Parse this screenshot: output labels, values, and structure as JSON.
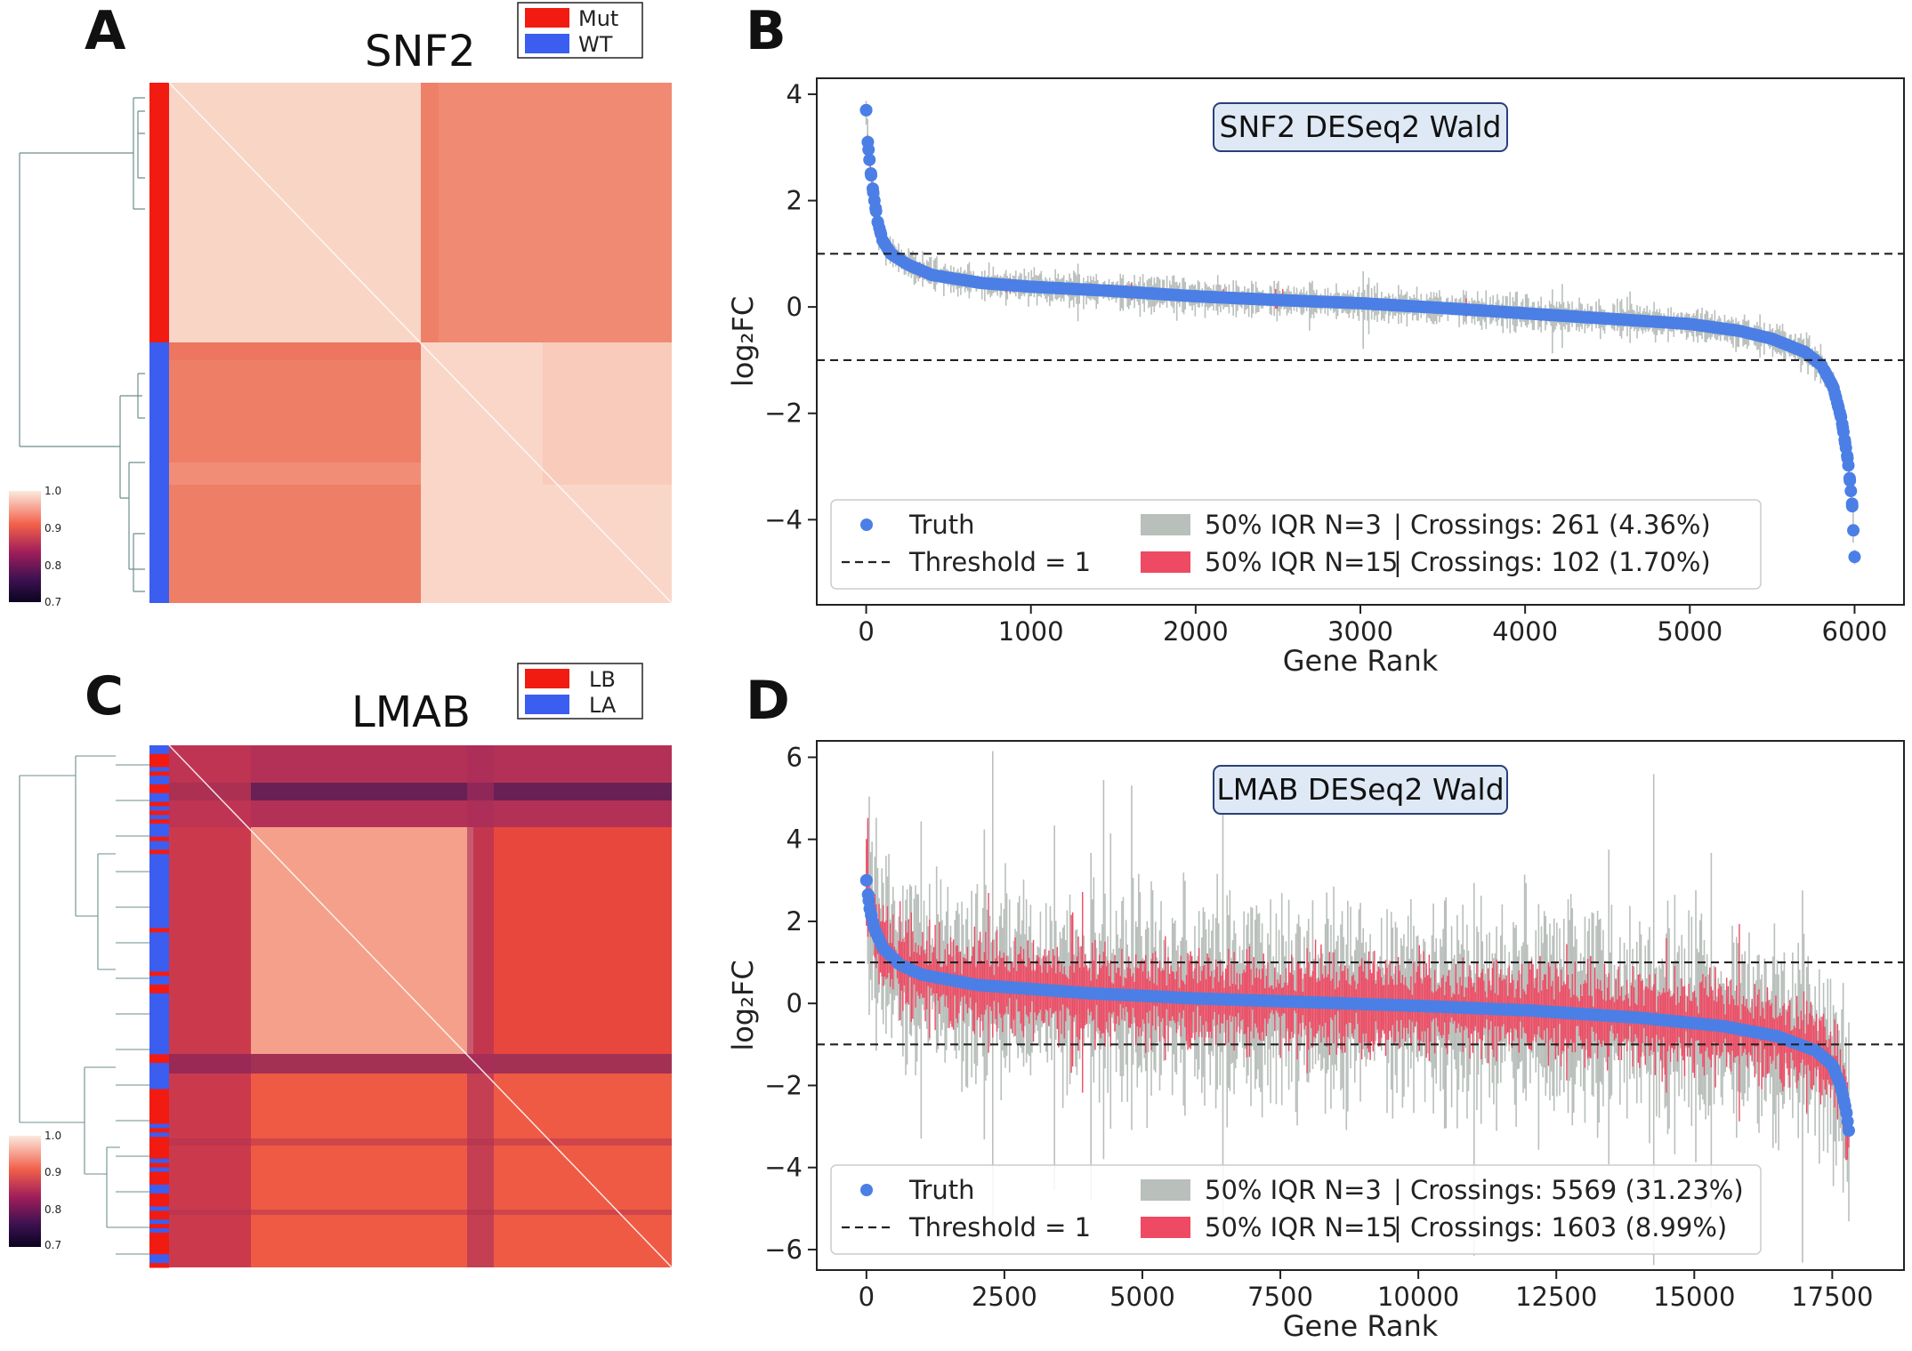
{
  "panels": {
    "A": {
      "letter": "A",
      "title": "SNF2",
      "legend": [
        "Mut",
        "WT"
      ]
    },
    "B": {
      "letter": "B"
    },
    "C": {
      "letter": "C",
      "title": "LMAB",
      "legend": [
        "LB",
        "LA"
      ]
    },
    "D": {
      "letter": "D"
    }
  },
  "colorbar": {
    "ticks": [
      "1.0",
      "0.9",
      "0.8",
      "0.7"
    ]
  },
  "colors": {
    "mut": "#f21b11",
    "wt": "#3b5ef0",
    "truth": "#4b7fe6",
    "iqr_n3": "#b9bfbb",
    "iqr_n15": "#ee4a63",
    "threshold": "#222222"
  },
  "chart_data": [
    {
      "type": "heatmap",
      "title": "SNF2",
      "groups": [
        "Mut",
        "WT"
      ],
      "group_fraction_mut": 0.5,
      "colorbar_range": [
        0.7,
        1.0
      ]
    },
    {
      "type": "scatter",
      "title": "SNF2 DESeq2 Wald",
      "xlabel": "Gene Rank",
      "ylabel": "log₂FC",
      "xlim": [
        -300,
        6300
      ],
      "ylim": [
        -5.6,
        4.3
      ],
      "xticks": [
        0,
        1000,
        2000,
        3000,
        4000,
        5000,
        6000
      ],
      "xtick_labels": [
        "0",
        "1000",
        "2000",
        "3000",
        "4000",
        "5000",
        "6000"
      ],
      "yticks": [
        4,
        2,
        0,
        -2,
        -4
      ],
      "ytick_labels": [
        "4",
        "2",
        "0",
        "−2",
        "−4"
      ],
      "n_genes": 6000,
      "threshold": 1,
      "truth_curve": [
        [
          0,
          3.7
        ],
        [
          10,
          3.1
        ],
        [
          25,
          2.6
        ],
        [
          45,
          2.1
        ],
        [
          70,
          1.6
        ],
        [
          100,
          1.25
        ],
        [
          150,
          1.0
        ],
        [
          250,
          0.8
        ],
        [
          400,
          0.6
        ],
        [
          700,
          0.45
        ],
        [
          1000,
          0.38
        ],
        [
          1500,
          0.3
        ],
        [
          2000,
          0.2
        ],
        [
          2500,
          0.13
        ],
        [
          3000,
          0.07
        ],
        [
          3500,
          -0.02
        ],
        [
          4000,
          -0.12
        ],
        [
          4500,
          -0.22
        ],
        [
          5000,
          -0.32
        ],
        [
          5300,
          -0.45
        ],
        [
          5500,
          -0.6
        ],
        [
          5700,
          -0.85
        ],
        [
          5800,
          -1.1
        ],
        [
          5870,
          -1.5
        ],
        [
          5920,
          -2.1
        ],
        [
          5960,
          -2.9
        ],
        [
          5985,
          -3.7
        ],
        [
          6000,
          -4.7
        ]
      ],
      "iqr_n3_halfwidth": 0.18,
      "iqr_n15_halfwidth": 0.05,
      "legend": {
        "truth": "Truth",
        "threshold": "Threshold = 1",
        "n3": "50% IQR N=3",
        "n3_cross": "| Crossings: 261 (4.36%)",
        "n15": "50% IQR N=15",
        "n15_cross": "| Crossings: 102 (1.70%)"
      }
    },
    {
      "type": "heatmap",
      "title": "LMAB",
      "groups": [
        "LB",
        "LA"
      ],
      "colorbar_range": [
        0.7,
        1.0
      ]
    },
    {
      "type": "scatter",
      "title": "LMAB DESeq2 Wald",
      "xlabel": "Gene Rank",
      "ylabel": "log₂FC",
      "xlim": [
        -900,
        18800
      ],
      "ylim": [
        -6.5,
        6.4
      ],
      "xticks": [
        0,
        2500,
        5000,
        7500,
        10000,
        12500,
        15000,
        17500
      ],
      "xtick_labels": [
        "0",
        "2500",
        "5000",
        "7500",
        "10000",
        "12500",
        "15000",
        "17500"
      ],
      "yticks": [
        6,
        4,
        2,
        0,
        -2,
        -4,
        -6
      ],
      "ytick_labels": [
        "6",
        "4",
        "2",
        "0",
        "−2",
        "−4",
        "−6"
      ],
      "n_genes": 17800,
      "threshold": 1,
      "truth_curve": [
        [
          0,
          3.0
        ],
        [
          60,
          2.3
        ],
        [
          150,
          1.8
        ],
        [
          300,
          1.35
        ],
        [
          600,
          0.95
        ],
        [
          1000,
          0.7
        ],
        [
          2000,
          0.45
        ],
        [
          4000,
          0.25
        ],
        [
          6000,
          0.12
        ],
        [
          8000,
          0.03
        ],
        [
          10000,
          -0.06
        ],
        [
          12000,
          -0.17
        ],
        [
          14000,
          -0.35
        ],
        [
          15500,
          -0.55
        ],
        [
          16500,
          -0.8
        ],
        [
          17200,
          -1.15
        ],
        [
          17500,
          -1.5
        ],
        [
          17650,
          -2.0
        ],
        [
          17750,
          -2.6
        ],
        [
          17800,
          -3.1
        ]
      ],
      "iqr_n3_halfwidth": 1.4,
      "iqr_n15_halfwidth": 0.65,
      "legend": {
        "truth": "Truth",
        "threshold": "Threshold = 1",
        "n3": "50% IQR N=3",
        "n3_cross": "| Crossings: 5569 (31.23%)",
        "n15": "50% IQR N=15",
        "n15_cross": "| Crossings: 1603 (8.99%)"
      }
    }
  ]
}
